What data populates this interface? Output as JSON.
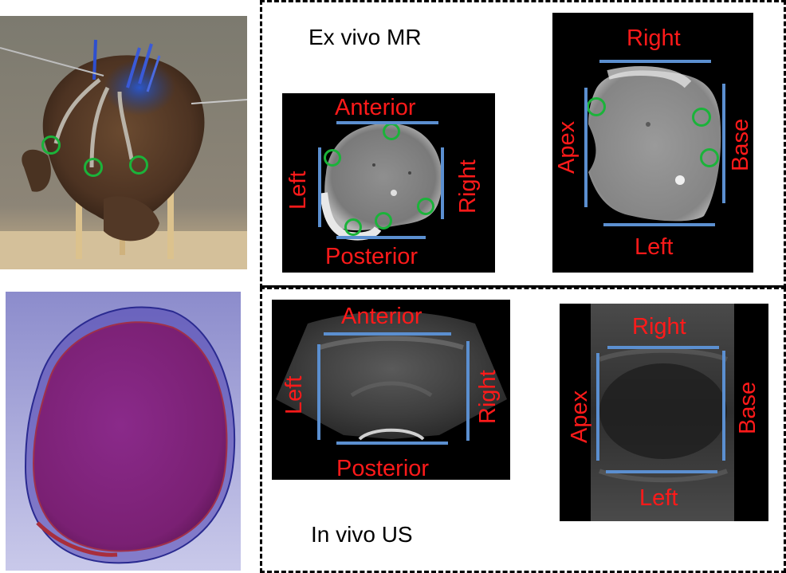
{
  "captions": {
    "ex_vivo": "Ex vivo MR",
    "in_vivo": "In vivo US"
  },
  "mr_axial": {
    "top": "Anterior",
    "bottom": "Posterior",
    "left": "Left",
    "right": "Right"
  },
  "mr_sagittal": {
    "top": "Right",
    "bottom": "Left",
    "left": "Apex",
    "right": "Base"
  },
  "us_axial": {
    "top": "Anterior",
    "bottom": "Posterior",
    "left": "Left",
    "right": "Right"
  },
  "us_sagittal": {
    "top": "Right",
    "bottom": "Left",
    "left": "Apex",
    "right": "Base"
  },
  "colors": {
    "label": "#ff1a1a",
    "orientation_bar": "#5b8fd0",
    "marker": "#1bb33a",
    "frame": "#000000"
  }
}
